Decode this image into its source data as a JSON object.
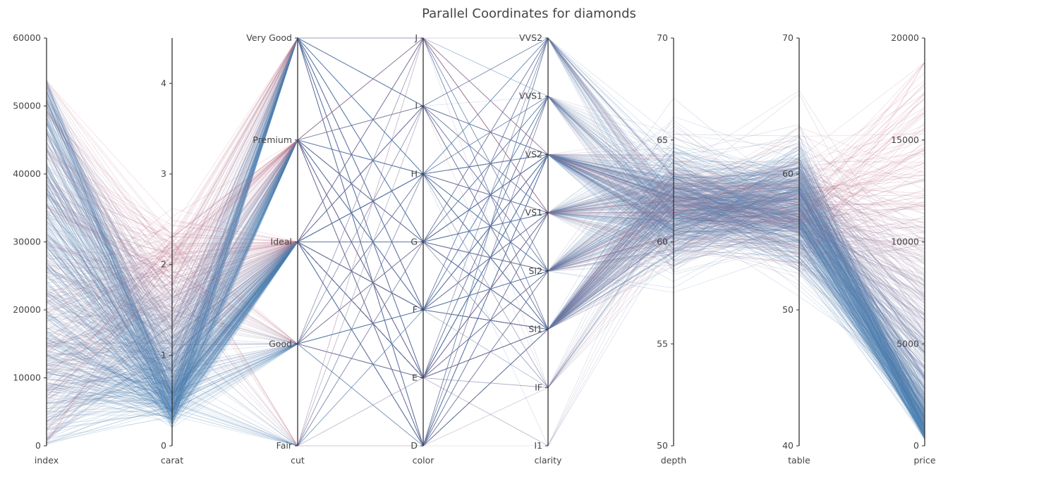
{
  "chart_data": {
    "type": "parallel_coordinates",
    "title": "Parallel Coordinates for diamonds",
    "colors": {
      "low": "#4682b4",
      "high": "#c06c84",
      "axis": "#333333",
      "text": "#444444"
    },
    "axes": [
      {
        "name": "index",
        "kind": "numeric",
        "range": [
          0,
          60000
        ],
        "ticks": [
          "0",
          "10000",
          "20000",
          "30000",
          "40000",
          "50000",
          "60000"
        ],
        "tick_values": [
          0,
          10000,
          20000,
          30000,
          40000,
          50000,
          60000
        ],
        "label_side": "left"
      },
      {
        "name": "carat",
        "kind": "numeric",
        "range": [
          0,
          4.5
        ],
        "ticks": [
          "0",
          "1",
          "2",
          "3",
          "4"
        ],
        "tick_values": [
          0,
          1,
          2,
          3,
          4
        ],
        "label_side": "left"
      },
      {
        "name": "cut",
        "kind": "categorical",
        "categories": [
          "Fair",
          "Good",
          "Ideal",
          "Premium",
          "Very Good"
        ],
        "label_side": "left"
      },
      {
        "name": "color",
        "kind": "categorical",
        "categories": [
          "D",
          "E",
          "F",
          "G",
          "H",
          "I",
          "J"
        ],
        "label_side": "left"
      },
      {
        "name": "clarity",
        "kind": "categorical",
        "categories": [
          "I1",
          "IF",
          "SI1",
          "SI2",
          "VS1",
          "VS2",
          "VVS1",
          "VVS2"
        ],
        "label_side": "left"
      },
      {
        "name": "depth",
        "kind": "numeric",
        "range": [
          50,
          70
        ],
        "ticks": [
          "50",
          "55",
          "60",
          "65",
          "70"
        ],
        "tick_values": [
          50,
          55,
          60,
          65,
          70
        ],
        "label_side": "left"
      },
      {
        "name": "table",
        "kind": "numeric",
        "range": [
          40,
          70
        ],
        "ticks": [
          "40",
          "50",
          "60",
          "70"
        ],
        "tick_values": [
          40,
          50,
          60,
          70
        ],
        "label_side": "left"
      },
      {
        "name": "price",
        "kind": "numeric",
        "range": [
          0,
          20000
        ],
        "ticks": [
          "0",
          "5000",
          "10000",
          "15000",
          "20000"
        ],
        "tick_values": [
          0,
          5000,
          10000,
          15000,
          20000
        ],
        "label_side": "left"
      }
    ],
    "sample_rows": 700
  }
}
